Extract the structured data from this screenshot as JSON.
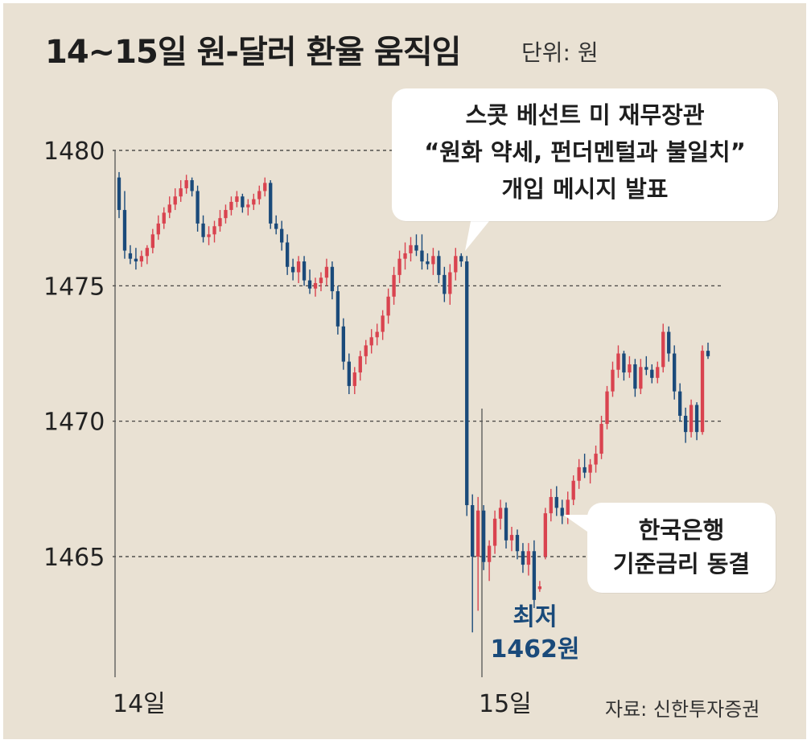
{
  "header": {
    "title": "14~15일 원-달러 환율 움직임",
    "unit": "단위: 원"
  },
  "source": "자료: 신한투자증권",
  "callouts": {
    "bessent": [
      "스콧 베선트 미 재무장관",
      "“원화 약세, 펀더멘털과 불일치”",
      "개입 메시지 발표"
    ],
    "bok": [
      "한국은행",
      "기준금리 동결"
    ]
  },
  "low": {
    "line1": "최저",
    "line2": "1462원"
  },
  "colors": {
    "up": "#d9434f",
    "down": "#1a4a7a",
    "background": "#e9e1d3",
    "callout": "#ffffff"
  },
  "chart_data": {
    "type": "candlestick",
    "y_ticks": [
      "1480",
      "1475",
      "1470",
      "1465"
    ],
    "ylim": [
      1462,
      1480.5
    ],
    "x_labels": [
      "14일",
      "15일"
    ],
    "grid": "dashed horizontal at 1480, 1475, 1470, 1465",
    "candles": [
      [
        1479.0,
        1479.2,
        1477.5,
        1477.8
      ],
      [
        1477.8,
        1478.5,
        1476.0,
        1476.3
      ],
      [
        1476.2,
        1476.5,
        1475.8,
        1476.0
      ],
      [
        1476.0,
        1476.4,
        1475.6,
        1475.9
      ],
      [
        1475.9,
        1476.3,
        1475.7,
        1476.1
      ],
      [
        1476.1,
        1476.5,
        1475.8,
        1476.4
      ],
      [
        1476.4,
        1477.1,
        1476.2,
        1476.9
      ],
      [
        1476.9,
        1477.6,
        1476.7,
        1477.3
      ],
      [
        1477.3,
        1477.9,
        1477.1,
        1477.7
      ],
      [
        1477.7,
        1478.3,
        1477.5,
        1478.0
      ],
      [
        1478.0,
        1478.6,
        1477.8,
        1478.3
      ],
      [
        1478.3,
        1478.9,
        1478.1,
        1478.6
      ],
      [
        1478.6,
        1479.1,
        1478.4,
        1478.9
      ],
      [
        1478.9,
        1479.0,
        1478.3,
        1478.5
      ],
      [
        1478.5,
        1478.7,
        1477.0,
        1477.3
      ],
      [
        1477.3,
        1477.6,
        1476.6,
        1476.8
      ],
      [
        1476.8,
        1477.2,
        1476.5,
        1476.9
      ],
      [
        1476.9,
        1477.4,
        1476.6,
        1477.2
      ],
      [
        1477.2,
        1477.8,
        1477.0,
        1477.5
      ],
      [
        1477.5,
        1478.0,
        1477.3,
        1477.8
      ],
      [
        1477.8,
        1478.3,
        1477.6,
        1478.1
      ],
      [
        1478.1,
        1478.5,
        1477.9,
        1478.3
      ],
      [
        1478.3,
        1478.4,
        1477.7,
        1477.9
      ],
      [
        1477.9,
        1478.2,
        1477.6,
        1478.0
      ],
      [
        1478.0,
        1478.4,
        1477.8,
        1478.2
      ],
      [
        1478.2,
        1478.7,
        1478.0,
        1478.5
      ],
      [
        1478.5,
        1479.0,
        1478.3,
        1478.8
      ],
      [
        1478.8,
        1478.9,
        1477.1,
        1477.3
      ],
      [
        1477.3,
        1477.6,
        1476.9,
        1477.1
      ],
      [
        1477.1,
        1477.4,
        1476.3,
        1476.6
      ],
      [
        1476.6,
        1476.9,
        1475.4,
        1475.7
      ],
      [
        1475.7,
        1476.0,
        1475.2,
        1475.5
      ],
      [
        1475.5,
        1476.1,
        1475.1,
        1475.9
      ],
      [
        1475.9,
        1476.1,
        1475.0,
        1475.2
      ],
      [
        1475.2,
        1475.6,
        1474.7,
        1474.9
      ],
      [
        1474.9,
        1475.3,
        1474.6,
        1475.1
      ],
      [
        1475.1,
        1475.5,
        1474.8,
        1475.3
      ],
      [
        1475.3,
        1476.0,
        1475.0,
        1475.7
      ],
      [
        1475.7,
        1475.9,
        1474.5,
        1474.8
      ],
      [
        1474.8,
        1475.0,
        1473.2,
        1473.5
      ],
      [
        1473.5,
        1473.8,
        1471.9,
        1472.2
      ],
      [
        1472.2,
        1472.5,
        1471.0,
        1471.3
      ],
      [
        1471.3,
        1472.0,
        1471.0,
        1471.8
      ],
      [
        1471.8,
        1472.6,
        1471.5,
        1472.4
      ],
      [
        1472.4,
        1473.0,
        1472.1,
        1472.8
      ],
      [
        1472.8,
        1473.4,
        1472.5,
        1473.1
      ],
      [
        1473.1,
        1473.6,
        1472.8,
        1473.3
      ],
      [
        1473.3,
        1474.1,
        1473.0,
        1473.9
      ],
      [
        1473.9,
        1474.9,
        1473.6,
        1474.6
      ],
      [
        1474.6,
        1475.7,
        1474.3,
        1475.4
      ],
      [
        1475.4,
        1476.3,
        1475.1,
        1476.0
      ],
      [
        1476.0,
        1476.6,
        1475.6,
        1476.2
      ],
      [
        1476.2,
        1476.8,
        1475.9,
        1476.5
      ],
      [
        1476.5,
        1476.9,
        1476.1,
        1476.3
      ],
      [
        1476.3,
        1476.9,
        1475.6,
        1475.9
      ],
      [
        1475.9,
        1476.2,
        1475.6,
        1475.8
      ],
      [
        1475.8,
        1476.4,
        1475.4,
        1476.1
      ],
      [
        1476.1,
        1476.3,
        1475.1,
        1475.4
      ],
      [
        1475.4,
        1475.7,
        1474.4,
        1474.7
      ],
      [
        1474.7,
        1475.8,
        1474.3,
        1475.5
      ],
      [
        1475.5,
        1476.4,
        1475.2,
        1476.1
      ],
      [
        1476.1,
        1476.2,
        1475.7,
        1475.9
      ],
      [
        1475.9,
        1476.1,
        1466.5,
        1466.9
      ],
      [
        1466.9,
        1467.3,
        1462.2,
        1465.0
      ],
      [
        1465.0,
        1467.2,
        1463.0,
        1466.7
      ],
      [
        1466.7,
        1466.9,
        1464.5,
        1464.8
      ],
      [
        1464.8,
        1465.6,
        1464.1,
        1465.4
      ],
      [
        1465.4,
        1466.7,
        1465.1,
        1466.4
      ],
      [
        1466.4,
        1467.1,
        1466.0,
        1466.8
      ],
      [
        1466.8,
        1467.0,
        1465.3,
        1465.6
      ],
      [
        1465.6,
        1466.1,
        1465.2,
        1465.8
      ],
      [
        1465.8,
        1466.0,
        1464.9,
        1465.2
      ],
      [
        1465.2,
        1465.5,
        1464.4,
        1464.7
      ],
      [
        1464.7,
        1465.5,
        1464.3,
        1465.2
      ],
      [
        1465.2,
        1465.6,
        1463.1,
        1463.4
      ],
      [
        1463.8,
        1464.1,
        1463.7,
        1463.9
      ],
      [
        1465.0,
        1466.8,
        1464.9,
        1466.6
      ],
      [
        1466.6,
        1467.5,
        1466.3,
        1467.2
      ],
      [
        1467.2,
        1467.6,
        1466.5,
        1466.8
      ],
      [
        1466.8,
        1467.1,
        1466.2,
        1466.5
      ],
      [
        1466.5,
        1467.4,
        1466.2,
        1467.1
      ],
      [
        1467.1,
        1468.0,
        1466.9,
        1467.8
      ],
      [
        1467.8,
        1468.6,
        1467.5,
        1468.3
      ],
      [
        1468.3,
        1468.8,
        1467.9,
        1468.1
      ],
      [
        1468.1,
        1468.6,
        1467.7,
        1468.4
      ],
      [
        1468.4,
        1469.1,
        1468.1,
        1468.8
      ],
      [
        1468.8,
        1470.2,
        1468.6,
        1469.9
      ],
      [
        1469.9,
        1471.3,
        1469.7,
        1471.1
      ],
      [
        1471.1,
        1472.2,
        1470.9,
        1471.9
      ],
      [
        1471.9,
        1472.8,
        1471.6,
        1472.5
      ],
      [
        1472.5,
        1472.6,
        1471.5,
        1471.8
      ],
      [
        1471.8,
        1472.4,
        1471.6,
        1472.1
      ],
      [
        1472.1,
        1472.3,
        1470.9,
        1471.2
      ],
      [
        1471.2,
        1472.3,
        1471.0,
        1472.0
      ],
      [
        1472.0,
        1472.4,
        1471.7,
        1471.9
      ],
      [
        1471.9,
        1472.1,
        1471.4,
        1471.6
      ],
      [
        1471.6,
        1472.2,
        1471.4,
        1472.0
      ],
      [
        1472.0,
        1473.6,
        1471.8,
        1473.3
      ],
      [
        1473.3,
        1473.5,
        1472.2,
        1472.5
      ],
      [
        1472.5,
        1472.8,
        1470.8,
        1471.1
      ],
      [
        1471.1,
        1471.4,
        1470.0,
        1470.2
      ],
      [
        1470.2,
        1470.5,
        1469.2,
        1469.6
      ],
      [
        1469.6,
        1470.8,
        1469.4,
        1470.6
      ],
      [
        1470.6,
        1470.7,
        1469.3,
        1469.6
      ],
      [
        1469.6,
        1472.8,
        1469.5,
        1472.6
      ],
      [
        1472.6,
        1472.9,
        1472.3,
        1472.4
      ]
    ]
  }
}
